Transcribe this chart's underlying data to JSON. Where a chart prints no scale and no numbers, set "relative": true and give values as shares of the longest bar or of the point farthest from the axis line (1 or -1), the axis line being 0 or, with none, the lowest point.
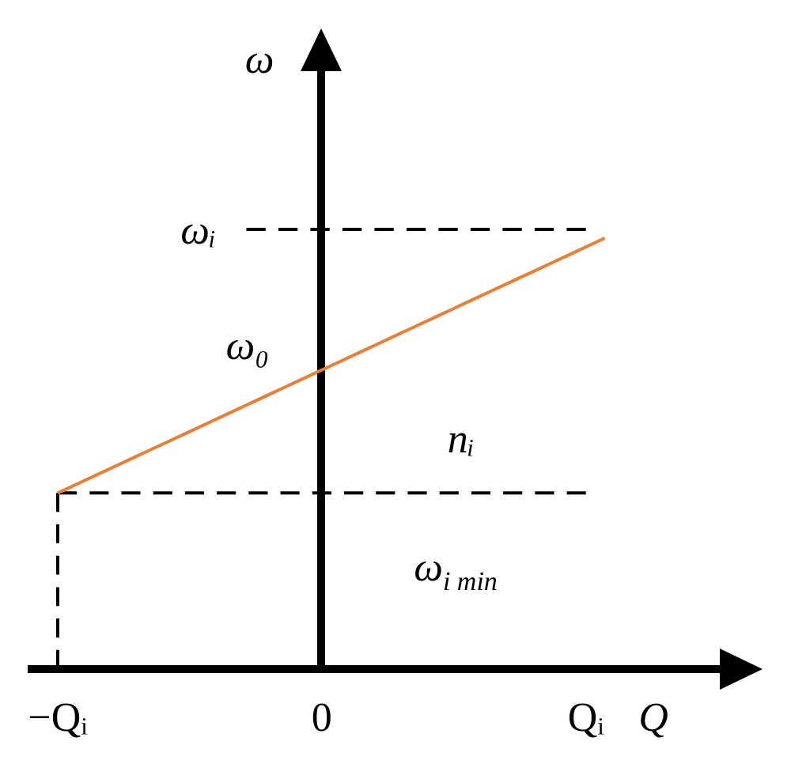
{
  "chart_data": {
    "type": "line",
    "relative": true,
    "xlabel": "Q",
    "ylabel": "ω",
    "categories": [
      "−Qᵢ",
      null,
      null,
      null,
      null,
      null,
      null,
      null,
      null,
      null,
      null,
      null,
      null,
      null,
      "0",
      null,
      null,
      null,
      null,
      null,
      null,
      null,
      null,
      null,
      null,
      null,
      null,
      null,
      "Qᵢ",
      null
    ],
    "series": [
      {
        "color": "#ed7d31",
        "values": [
          0.4,
          0.42,
          0.44,
          0.46,
          0.48,
          0.5,
          0.52,
          0.54,
          0.56,
          0.58,
          0.6,
          0.62,
          0.64,
          0.66,
          0.68,
          0.7,
          0.72,
          0.74,
          0.76,
          0.78,
          0.8,
          0.82,
          0.84,
          0.86,
          0.88,
          0.9,
          0.92,
          0.94,
          0.96,
          0.98
        ]
      },
      {
        "color": "#000000",
        "line_style": "dashed",
        "values": [
          null,
          null,
          null,
          null,
          null,
          null,
          null,
          null,
          null,
          null,
          1,
          1,
          1,
          1,
          1,
          1,
          1,
          1,
          1,
          1,
          1,
          1,
          1,
          1,
          1,
          1,
          1,
          1,
          1,
          null
        ]
      },
      {
        "color": "#000000",
        "line_style": "dashed",
        "values": [
          0.4,
          0.4,
          0.4,
          0.4,
          0.4,
          0.4,
          0.4,
          0.4,
          0.4,
          0.4,
          0.4,
          0.4,
          0.4,
          0.4,
          0.4,
          0.4,
          0.4,
          0.4,
          0.4,
          0.4,
          0.4,
          0.4,
          0.4,
          0.4,
          0.4,
          0.4,
          0.4,
          0.4,
          0.4,
          null
        ]
      },
      {
        "color": "#000000",
        "line_style": "dashed",
        "x": [
          "−Qᵢ",
          "−Qᵢ"
        ],
        "values": [
          0,
          0.4
        ]
      }
    ],
    "annotations": [
      "ωᵢ",
      {
        "text": "ω₀",
        "x": "0",
        "y": 0.68
      },
      "nᵢ",
      {
        "text": "ω$_{i min}$",
        "y": 0.4
      }
    ]
  }
}
